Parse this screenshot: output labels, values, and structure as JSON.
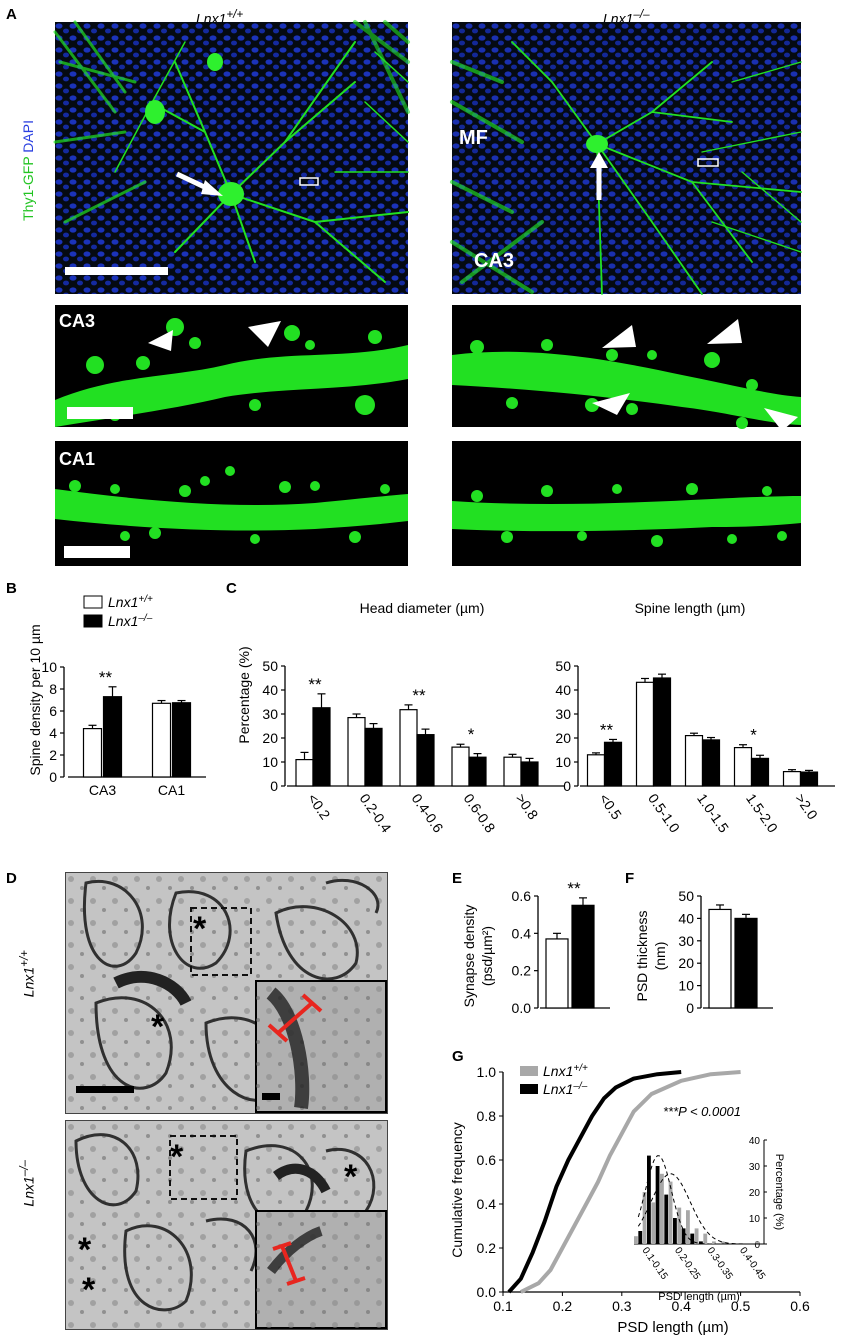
{
  "panel_letters": {
    "a": "A",
    "b": "B",
    "c": "C",
    "d": "D",
    "e": "E",
    "f": "F",
    "g": "G"
  },
  "genotypes": {
    "wt_base": "Lnx1",
    "wt_sup": "+/+",
    "ko_base": "Lnx1",
    "ko_sup": "–/–"
  },
  "micrograph": {
    "stain_green": "Thy1-GFP",
    "stain_blue": "DAPI",
    "label_mf": "MF",
    "label_ca3": "CA3",
    "row_ca3": "CA3",
    "row_ca1": "CA1"
  },
  "colors": {
    "gfp": "#22dd22",
    "dapi": "#2244ee",
    "red_bar": "#e8261f",
    "gray_series": "#a8a8a8"
  },
  "chart_data": [
    {
      "panel": "B",
      "type": "bar",
      "ylabel": "Spine density per 10 µm",
      "categories": [
        "CA3",
        "CA1"
      ],
      "series": [
        {
          "name": "Lnx1+/+",
          "values": [
            4.4,
            6.7
          ],
          "errors": [
            0.3,
            0.25
          ]
        },
        {
          "name": "Lnx1–/–",
          "values": [
            7.3,
            6.75
          ],
          "errors": [
            0.9,
            0.2
          ]
        }
      ],
      "ylim": [
        0,
        10
      ],
      "yticks": [
        "0",
        "2",
        "4",
        "6",
        "8",
        "10"
      ],
      "annotations": [
        "**",
        ""
      ],
      "legend": "top"
    },
    {
      "panel": "C",
      "type": "bar",
      "title": "Head diameter (µm)",
      "ylabel": "Percentage (%)",
      "categories": [
        "<0.2",
        "0.2-0.4",
        "0.4-0.6",
        "0.6-0.8",
        ">0.8"
      ],
      "series": [
        {
          "name": "Lnx1+/+",
          "values": [
            11,
            28.5,
            31.8,
            16.2,
            12
          ],
          "errors": [
            3,
            1.5,
            2,
            1.2,
            1.2
          ]
        },
        {
          "name": "Lnx1–/–",
          "values": [
            32.6,
            24,
            21.4,
            12,
            10
          ],
          "errors": [
            5.8,
            2,
            2.3,
            1.5,
            1.5
          ]
        }
      ],
      "ylim": [
        0,
        50
      ],
      "yticks": [
        "0",
        "10",
        "20",
        "30",
        "40",
        "50"
      ],
      "annotations": [
        "**",
        "",
        "**",
        "*",
        ""
      ]
    },
    {
      "panel": "C",
      "type": "bar",
      "title": "Spine length (µm)",
      "categories": [
        "<0.5",
        "0.5-1.0",
        "1.0-1.5",
        "1.5-2.0",
        ">2.0"
      ],
      "series": [
        {
          "name": "Lnx1+/+",
          "values": [
            13,
            43.2,
            21,
            16,
            6
          ],
          "errors": [
            0.8,
            1.6,
            1,
            1.2,
            0.8
          ]
        },
        {
          "name": "Lnx1–/–",
          "values": [
            18.2,
            45,
            19.2,
            11.5,
            5.8
          ],
          "errors": [
            1.2,
            1.6,
            1,
            1.3,
            0.7
          ]
        }
      ],
      "ylim": [
        0,
        50
      ],
      "yticks": [
        "0",
        "10",
        "20",
        "30",
        "40",
        "50"
      ],
      "annotations": [
        "**",
        "",
        "",
        "*",
        ""
      ]
    },
    {
      "panel": "E",
      "type": "bar",
      "ylabel": "Synapse density (psd/µm²)",
      "ylabel_line1": "Synapse density",
      "ylabel_line2": "(psd/µm²)",
      "series": [
        {
          "name": "Lnx1+/+",
          "values": [
            0.37
          ],
          "errors": [
            0.03
          ]
        },
        {
          "name": "Lnx1–/–",
          "values": [
            0.55
          ],
          "errors": [
            0.04
          ]
        }
      ],
      "ylim": [
        0,
        0.6
      ],
      "yticks": [
        "0.0",
        "0.2",
        "0.4",
        "0.6"
      ],
      "annotations": [
        "**"
      ]
    },
    {
      "panel": "F",
      "type": "bar",
      "ylabel": "PSD thickness (nm)",
      "ylabel_line1": "PSD thickness",
      "ylabel_line2": "(nm)",
      "series": [
        {
          "name": "Lnx1+/+",
          "values": [
            44
          ],
          "errors": [
            2
          ]
        },
        {
          "name": "Lnx1–/–",
          "values": [
            40
          ],
          "errors": [
            1.8
          ]
        }
      ],
      "ylim": [
        0,
        50
      ],
      "yticks": [
        "0",
        "10",
        "20",
        "30",
        "40",
        "50"
      ]
    },
    {
      "panel": "G",
      "type": "line",
      "xlabel": "PSD length (µm)",
      "ylabel": "Cumulative frequency",
      "xlim": [
        0.1,
        0.6
      ],
      "ylim": [
        0,
        1
      ],
      "xticks": [
        "0.1",
        "0.2",
        "0.3",
        "0.4",
        "0.5",
        "0.6"
      ],
      "yticks": [
        "0.0",
        "0.2",
        "0.4",
        "0.6",
        "0.8",
        "1.0"
      ],
      "series": [
        {
          "name": "Lnx1+/+",
          "color": "gray",
          "x": [
            0.13,
            0.16,
            0.18,
            0.2,
            0.22,
            0.24,
            0.26,
            0.28,
            0.3,
            0.32,
            0.35,
            0.4,
            0.45,
            0.5
          ],
          "y": [
            0,
            0.04,
            0.1,
            0.2,
            0.3,
            0.4,
            0.5,
            0.62,
            0.72,
            0.82,
            0.9,
            0.96,
            0.99,
            1
          ]
        },
        {
          "name": "Lnx1–/–",
          "color": "black",
          "x": [
            0.11,
            0.13,
            0.15,
            0.17,
            0.19,
            0.21,
            0.23,
            0.25,
            0.27,
            0.29,
            0.32,
            0.36,
            0.4
          ],
          "y": [
            0,
            0.06,
            0.18,
            0.32,
            0.48,
            0.6,
            0.7,
            0.8,
            0.88,
            0.93,
            0.97,
            0.99,
            1
          ]
        }
      ],
      "annotation": "***P < 0.0001",
      "legend": "top-left",
      "inset": {
        "type": "bar",
        "xlabel": "PSD length (µm)",
        "ylabel": "Percentage (%)",
        "categories": [
          "0.1-0.15",
          "0.2-0.25",
          "0.3-0.35",
          "0.4-0.45"
        ],
        "bin_centers": [
          0.1,
          0.125,
          0.15,
          0.175,
          0.2,
          0.225,
          0.25,
          0.275,
          0.3,
          0.325,
          0.35,
          0.375,
          0.4,
          0.425,
          0.45
        ],
        "series": [
          {
            "name": "Lnx1+/+",
            "values": [
              3,
              20,
              16,
              27,
              24,
              14,
              13,
              6,
              4,
              1,
              1,
              0,
              0,
              0,
              1
            ]
          },
          {
            "name": "Lnx1–/–",
            "values": [
              5,
              34,
              30,
              19,
              10,
              6,
              4,
              1,
              0,
              0,
              0,
              0,
              0,
              0,
              0
            ]
          }
        ],
        "ylim": [
          0,
          40
        ],
        "yticks": [
          "0",
          "10",
          "20",
          "30",
          "40"
        ]
      }
    }
  ]
}
